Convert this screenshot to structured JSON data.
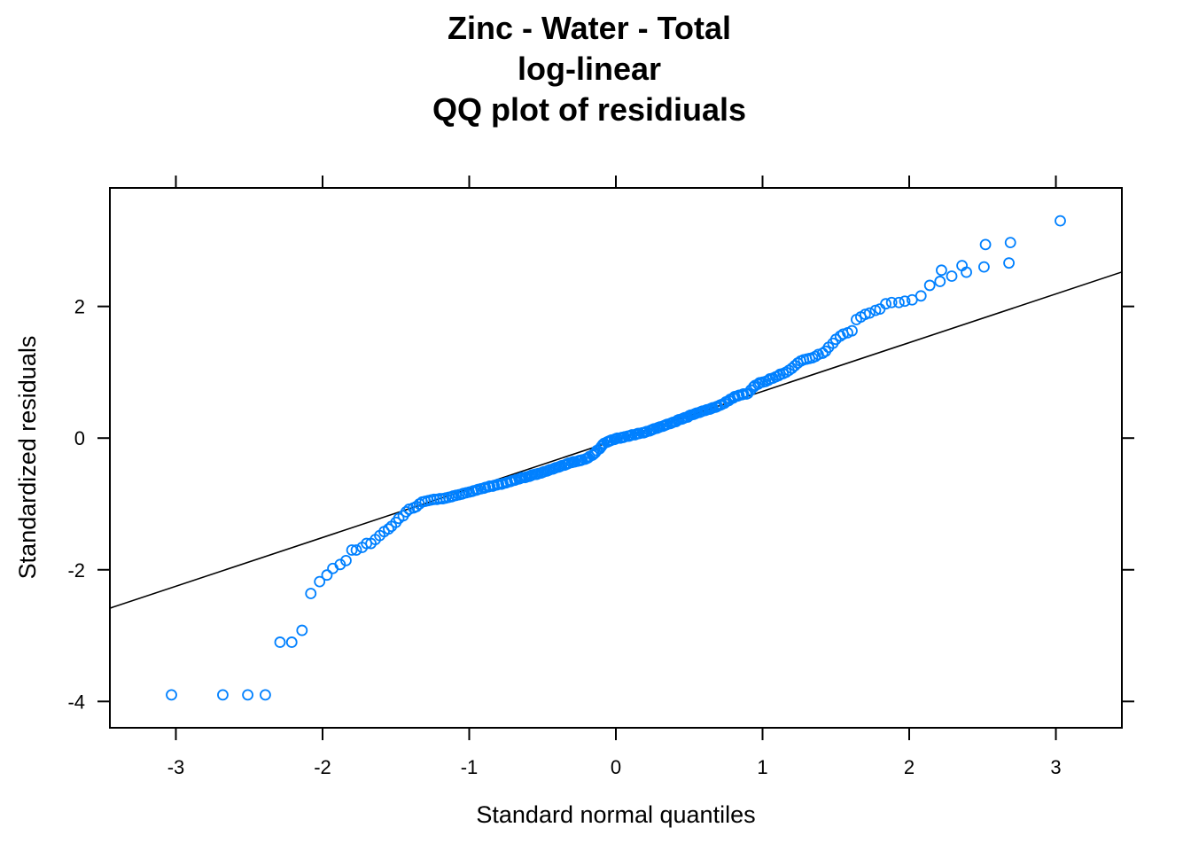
{
  "chart_data": {
    "type": "scatter",
    "title_lines": [
      "Zinc - Water - Total",
      "log-linear",
      "QQ plot of residiuals"
    ],
    "xlabel": "Standard normal quantiles",
    "ylabel": "Standardized residuals",
    "xlim": [
      -3.45,
      3.45
    ],
    "ylim": [
      -4.4,
      3.8
    ],
    "x_ticks": [
      -3,
      -2,
      -1,
      0,
      1,
      2,
      3
    ],
    "y_ticks": [
      -4,
      -2,
      0,
      2
    ],
    "point_color": "#0080ff",
    "line_color": "#000000",
    "reference_line": {
      "intercept": -0.03,
      "slope": 0.74
    },
    "points": [
      [
        -3.03,
        -3.9
      ],
      [
        -2.68,
        -3.9
      ],
      [
        -2.51,
        -3.9
      ],
      [
        -2.39,
        -3.9
      ],
      [
        -2.29,
        -3.1
      ],
      [
        -2.21,
        -3.1
      ],
      [
        -2.14,
        -2.92
      ],
      [
        -2.08,
        -2.36
      ],
      [
        -2.02,
        -2.18
      ],
      [
        -1.97,
        -2.08
      ],
      [
        -1.93,
        -1.98
      ],
      [
        -1.88,
        -1.92
      ],
      [
        -1.84,
        -1.86
      ],
      [
        -1.8,
        -1.7
      ],
      [
        -1.77,
        -1.7
      ],
      [
        -1.73,
        -1.66
      ],
      [
        -1.7,
        -1.6
      ],
      [
        -1.67,
        -1.6
      ],
      [
        -1.64,
        -1.54
      ],
      [
        -1.61,
        -1.48
      ],
      [
        -1.58,
        -1.42
      ],
      [
        -1.55,
        -1.38
      ],
      [
        -1.53,
        -1.34
      ],
      [
        -1.5,
        -1.28
      ],
      [
        -1.48,
        -1.22
      ],
      [
        -1.45,
        -1.18
      ],
      [
        -1.43,
        -1.12
      ],
      [
        -1.41,
        -1.08
      ],
      [
        -1.38,
        -1.06
      ],
      [
        -1.36,
        -1.04
      ],
      [
        -1.34,
        -1.0
      ],
      [
        -1.32,
        -0.97
      ],
      [
        -1.3,
        -0.96
      ],
      [
        -1.28,
        -0.95
      ],
      [
        -1.26,
        -0.94
      ],
      [
        -1.24,
        -0.93
      ],
      [
        -1.22,
        -0.93
      ],
      [
        -1.2,
        -0.92
      ],
      [
        -1.18,
        -0.92
      ],
      [
        -1.16,
        -0.91
      ],
      [
        -1.14,
        -0.9
      ],
      [
        -1.12,
        -0.89
      ],
      [
        -1.11,
        -0.88
      ],
      [
        -1.09,
        -0.87
      ],
      [
        -1.07,
        -0.86
      ],
      [
        -1.05,
        -0.85
      ],
      [
        -1.04,
        -0.84
      ],
      [
        -1.02,
        -0.83
      ],
      [
        -1.0,
        -0.82
      ],
      [
        -0.98,
        -0.81
      ],
      [
        -0.97,
        -0.8
      ],
      [
        -0.95,
        -0.79
      ],
      [
        -0.94,
        -0.78
      ],
      [
        -0.92,
        -0.77
      ],
      [
        -0.9,
        -0.76
      ],
      [
        -0.89,
        -0.75
      ],
      [
        -0.87,
        -0.74
      ],
      [
        -0.86,
        -0.73
      ],
      [
        -0.84,
        -0.73
      ],
      [
        -0.83,
        -0.72
      ],
      [
        -0.81,
        -0.71
      ],
      [
        -0.8,
        -0.7
      ],
      [
        -0.78,
        -0.7
      ],
      [
        -0.77,
        -0.69
      ],
      [
        -0.75,
        -0.68
      ],
      [
        -0.74,
        -0.67
      ],
      [
        -0.72,
        -0.66
      ],
      [
        -0.71,
        -0.65
      ],
      [
        -0.69,
        -0.64
      ],
      [
        -0.68,
        -0.63
      ],
      [
        -0.66,
        -0.62
      ],
      [
        -0.65,
        -0.61
      ],
      [
        -0.64,
        -0.6
      ],
      [
        -0.62,
        -0.6
      ],
      [
        -0.61,
        -0.59
      ],
      [
        -0.59,
        -0.58
      ],
      [
        -0.58,
        -0.57
      ],
      [
        -0.57,
        -0.56
      ],
      [
        -0.55,
        -0.55
      ],
      [
        -0.54,
        -0.55
      ],
      [
        -0.53,
        -0.54
      ],
      [
        -0.51,
        -0.53
      ],
      [
        -0.5,
        -0.52
      ],
      [
        -0.49,
        -0.51
      ],
      [
        -0.47,
        -0.5
      ],
      [
        -0.46,
        -0.49
      ],
      [
        -0.45,
        -0.48
      ],
      [
        -0.43,
        -0.47
      ],
      [
        -0.42,
        -0.46
      ],
      [
        -0.41,
        -0.45
      ],
      [
        -0.39,
        -0.44
      ],
      [
        -0.38,
        -0.43
      ],
      [
        -0.37,
        -0.42
      ],
      [
        -0.35,
        -0.41
      ],
      [
        -0.34,
        -0.4
      ],
      [
        -0.33,
        -0.39
      ],
      [
        -0.32,
        -0.38
      ],
      [
        -0.3,
        -0.37
      ],
      [
        -0.29,
        -0.36
      ],
      [
        -0.28,
        -0.36
      ],
      [
        -0.26,
        -0.35
      ],
      [
        -0.25,
        -0.34
      ],
      [
        -0.24,
        -0.34
      ],
      [
        -0.23,
        -0.33
      ],
      [
        -0.21,
        -0.32
      ],
      [
        -0.2,
        -0.31
      ],
      [
        -0.19,
        -0.3
      ],
      [
        -0.18,
        -0.28
      ],
      [
        -0.16,
        -0.26
      ],
      [
        -0.15,
        -0.24
      ],
      [
        -0.14,
        -0.22
      ],
      [
        -0.13,
        -0.19
      ],
      [
        -0.11,
        -0.16
      ],
      [
        -0.1,
        -0.13
      ],
      [
        -0.09,
        -0.1
      ],
      [
        -0.08,
        -0.08
      ],
      [
        -0.06,
        -0.06
      ],
      [
        -0.05,
        -0.05
      ],
      [
        -0.04,
        -0.04
      ],
      [
        -0.03,
        -0.03
      ],
      [
        -0.01,
        -0.02
      ],
      [
        0.0,
        -0.01
      ],
      [
        0.01,
        0.0
      ],
      [
        0.03,
        0.0
      ],
      [
        0.04,
        0.01
      ],
      [
        0.05,
        0.01
      ],
      [
        0.06,
        0.02
      ],
      [
        0.08,
        0.03
      ],
      [
        0.09,
        0.03
      ],
      [
        0.1,
        0.04
      ],
      [
        0.11,
        0.05
      ],
      [
        0.13,
        0.05
      ],
      [
        0.14,
        0.06
      ],
      [
        0.15,
        0.07
      ],
      [
        0.16,
        0.07
      ],
      [
        0.18,
        0.08
      ],
      [
        0.19,
        0.08
      ],
      [
        0.2,
        0.09
      ],
      [
        0.21,
        0.1
      ],
      [
        0.23,
        0.11
      ],
      [
        0.24,
        0.12
      ],
      [
        0.25,
        0.13
      ],
      [
        0.26,
        0.14
      ],
      [
        0.28,
        0.15
      ],
      [
        0.29,
        0.16
      ],
      [
        0.3,
        0.17
      ],
      [
        0.32,
        0.18
      ],
      [
        0.33,
        0.19
      ],
      [
        0.34,
        0.2
      ],
      [
        0.35,
        0.21
      ],
      [
        0.37,
        0.22
      ],
      [
        0.38,
        0.23
      ],
      [
        0.39,
        0.24
      ],
      [
        0.41,
        0.25
      ],
      [
        0.42,
        0.27
      ],
      [
        0.43,
        0.28
      ],
      [
        0.45,
        0.29
      ],
      [
        0.46,
        0.3
      ],
      [
        0.47,
        0.31
      ],
      [
        0.49,
        0.32
      ],
      [
        0.5,
        0.34
      ],
      [
        0.51,
        0.35
      ],
      [
        0.53,
        0.36
      ],
      [
        0.54,
        0.37
      ],
      [
        0.55,
        0.38
      ],
      [
        0.57,
        0.39
      ],
      [
        0.58,
        0.4
      ],
      [
        0.59,
        0.41
      ],
      [
        0.61,
        0.42
      ],
      [
        0.62,
        0.43
      ],
      [
        0.64,
        0.44
      ],
      [
        0.65,
        0.45
      ],
      [
        0.66,
        0.46
      ],
      [
        0.68,
        0.47
      ],
      [
        0.69,
        0.48
      ],
      [
        0.71,
        0.5
      ],
      [
        0.72,
        0.51
      ],
      [
        0.74,
        0.53
      ],
      [
        0.75,
        0.55
      ],
      [
        0.77,
        0.57
      ],
      [
        0.78,
        0.59
      ],
      [
        0.8,
        0.61
      ],
      [
        0.81,
        0.63
      ],
      [
        0.83,
        0.64
      ],
      [
        0.84,
        0.65
      ],
      [
        0.86,
        0.66
      ],
      [
        0.87,
        0.67
      ],
      [
        0.89,
        0.67
      ],
      [
        0.9,
        0.68
      ],
      [
        0.92,
        0.73
      ],
      [
        0.94,
        0.78
      ],
      [
        0.95,
        0.8
      ],
      [
        0.97,
        0.82
      ],
      [
        0.98,
        0.84
      ],
      [
        1.0,
        0.85
      ],
      [
        1.02,
        0.86
      ],
      [
        1.04,
        0.88
      ],
      [
        1.05,
        0.9
      ],
      [
        1.07,
        0.91
      ],
      [
        1.09,
        0.93
      ],
      [
        1.11,
        0.95
      ],
      [
        1.12,
        0.97
      ],
      [
        1.14,
        0.98
      ],
      [
        1.16,
        1.0
      ],
      [
        1.18,
        1.03
      ],
      [
        1.2,
        1.06
      ],
      [
        1.22,
        1.1
      ],
      [
        1.24,
        1.14
      ],
      [
        1.26,
        1.17
      ],
      [
        1.28,
        1.19
      ],
      [
        1.3,
        1.2
      ],
      [
        1.32,
        1.21
      ],
      [
        1.34,
        1.22
      ],
      [
        1.36,
        1.24
      ],
      [
        1.38,
        1.27
      ],
      [
        1.41,
        1.29
      ],
      [
        1.43,
        1.32
      ],
      [
        1.45,
        1.38
      ],
      [
        1.48,
        1.44
      ],
      [
        1.5,
        1.5
      ],
      [
        1.53,
        1.55
      ],
      [
        1.55,
        1.58
      ],
      [
        1.58,
        1.6
      ],
      [
        1.61,
        1.63
      ],
      [
        1.64,
        1.8
      ],
      [
        1.67,
        1.84
      ],
      [
        1.7,
        1.88
      ],
      [
        1.73,
        1.9
      ],
      [
        1.77,
        1.94
      ],
      [
        1.8,
        1.96
      ],
      [
        1.84,
        2.04
      ],
      [
        1.88,
        2.06
      ],
      [
        1.93,
        2.06
      ],
      [
        1.97,
        2.08
      ],
      [
        2.02,
        2.1
      ],
      [
        2.08,
        2.16
      ],
      [
        2.14,
        2.32
      ],
      [
        2.21,
        2.38
      ],
      [
        2.29,
        2.46
      ],
      [
        2.39,
        2.52
      ],
      [
        2.51,
        2.6
      ],
      [
        2.68,
        2.66
      ],
      [
        3.03,
        3.3
      ],
      [
        2.52,
        2.94
      ],
      [
        2.69,
        2.97
      ],
      [
        2.36,
        2.62
      ],
      [
        2.22,
        2.55
      ]
    ]
  }
}
